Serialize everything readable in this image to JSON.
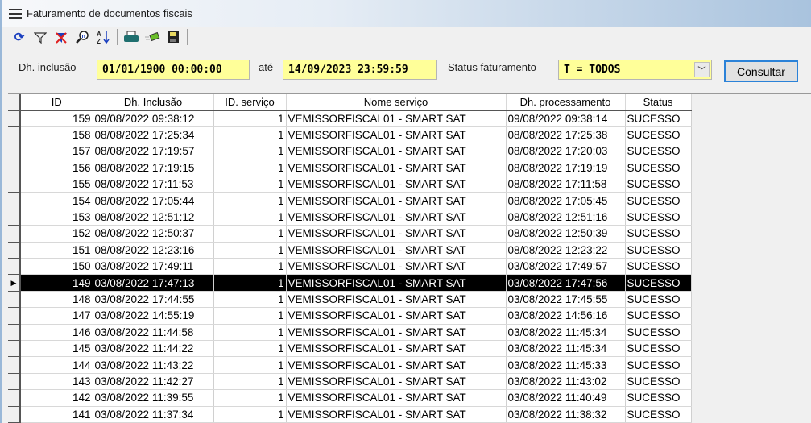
{
  "window": {
    "title": "Faturamento de documentos fiscais"
  },
  "toolbar": {
    "icons": [
      "refresh-icon",
      "filter-icon",
      "clear-filter-icon",
      "search-icon",
      "sort-az-icon",
      "print-icon",
      "export-icon",
      "save-icon"
    ]
  },
  "filters": {
    "inclusao_label": "Dh. inclusão",
    "inclusao_from": "01/01/1900 00:00:00",
    "ate_label": "até",
    "inclusao_to": "14/09/2023 23:59:59",
    "status_label": "Status faturamento",
    "status_value": "T = TODOS",
    "consultar_label": "Consultar"
  },
  "colors": {
    "field_bg": "#ffff99",
    "selected_row": "#000000",
    "accent": "#2b82d8"
  },
  "table": {
    "columns": [
      "ID",
      "Dh. Inclusão",
      "ID. serviço",
      "Nome serviço",
      "Dh. processamento",
      "Status"
    ],
    "selected_id": "149",
    "rows": [
      [
        "159",
        "09/08/2022 09:38:12",
        "1",
        "VEMISSORFISCAL01 - SMART SAT",
        "09/08/2022 09:38:14",
        "SUCESSO"
      ],
      [
        "158",
        "08/08/2022 17:25:34",
        "1",
        "VEMISSORFISCAL01 - SMART SAT",
        "08/08/2022 17:25:38",
        "SUCESSO"
      ],
      [
        "157",
        "08/08/2022 17:19:57",
        "1",
        "VEMISSORFISCAL01 - SMART SAT",
        "08/08/2022 17:20:03",
        "SUCESSO"
      ],
      [
        "156",
        "08/08/2022 17:19:15",
        "1",
        "VEMISSORFISCAL01 - SMART SAT",
        "08/08/2022 17:19:19",
        "SUCESSO"
      ],
      [
        "155",
        "08/08/2022 17:11:53",
        "1",
        "VEMISSORFISCAL01 - SMART SAT",
        "08/08/2022 17:11:58",
        "SUCESSO"
      ],
      [
        "154",
        "08/08/2022 17:05:44",
        "1",
        "VEMISSORFISCAL01 - SMART SAT",
        "08/08/2022 17:05:45",
        "SUCESSO"
      ],
      [
        "153",
        "08/08/2022 12:51:12",
        "1",
        "VEMISSORFISCAL01 - SMART SAT",
        "08/08/2022 12:51:16",
        "SUCESSO"
      ],
      [
        "152",
        "08/08/2022 12:50:37",
        "1",
        "VEMISSORFISCAL01 - SMART SAT",
        "08/08/2022 12:50:39",
        "SUCESSO"
      ],
      [
        "151",
        "08/08/2022 12:23:16",
        "1",
        "VEMISSORFISCAL01 - SMART SAT",
        "08/08/2022 12:23:22",
        "SUCESSO"
      ],
      [
        "150",
        "03/08/2022 17:49:11",
        "1",
        "VEMISSORFISCAL01 - SMART SAT",
        "03/08/2022 17:49:57",
        "SUCESSO"
      ],
      [
        "149",
        "03/08/2022 17:47:13",
        "1",
        "VEMISSORFISCAL01 - SMART SAT",
        "03/08/2022 17:47:56",
        "SUCESSO"
      ],
      [
        "148",
        "03/08/2022 17:44:55",
        "1",
        "VEMISSORFISCAL01 - SMART SAT",
        "03/08/2022 17:45:55",
        "SUCESSO"
      ],
      [
        "147",
        "03/08/2022 14:55:19",
        "1",
        "VEMISSORFISCAL01 - SMART SAT",
        "03/08/2022 14:56:16",
        "SUCESSO"
      ],
      [
        "146",
        "03/08/2022 11:44:58",
        "1",
        "VEMISSORFISCAL01 - SMART SAT",
        "03/08/2022 11:45:34",
        "SUCESSO"
      ],
      [
        "145",
        "03/08/2022 11:44:22",
        "1",
        "VEMISSORFISCAL01 - SMART SAT",
        "03/08/2022 11:45:34",
        "SUCESSO"
      ],
      [
        "144",
        "03/08/2022 11:43:22",
        "1",
        "VEMISSORFISCAL01 - SMART SAT",
        "03/08/2022 11:45:33",
        "SUCESSO"
      ],
      [
        "143",
        "03/08/2022 11:42:27",
        "1",
        "VEMISSORFISCAL01 - SMART SAT",
        "03/08/2022 11:43:02",
        "SUCESSO"
      ],
      [
        "142",
        "03/08/2022 11:39:55",
        "1",
        "VEMISSORFISCAL01 - SMART SAT",
        "03/08/2022 11:40:49",
        "SUCESSO"
      ],
      [
        "141",
        "03/08/2022 11:37:34",
        "1",
        "VEMISSORFISCAL01 - SMART SAT",
        "03/08/2022 11:38:32",
        "SUCESSO"
      ]
    ]
  }
}
